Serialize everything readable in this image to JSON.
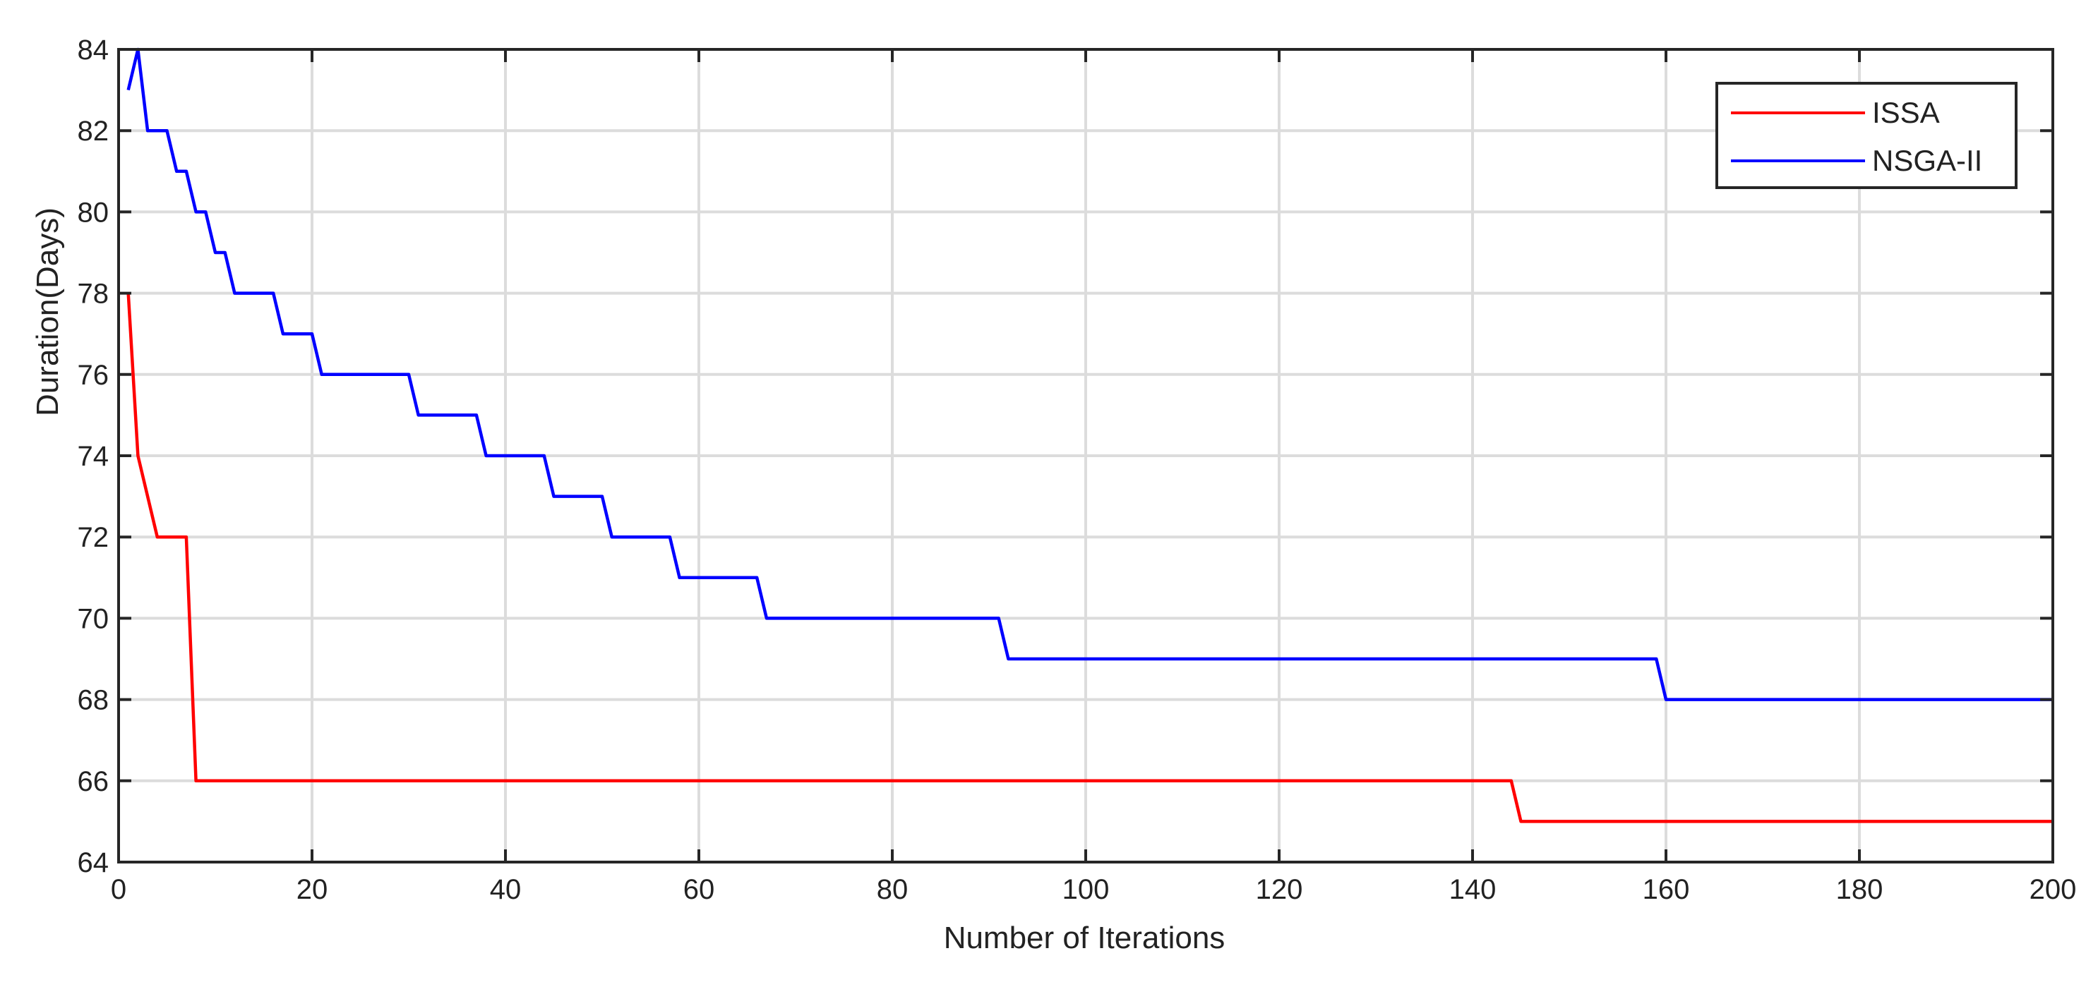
{
  "chart_data": {
    "type": "line",
    "title": "",
    "xlabel": "Number of Iterations",
    "ylabel": "Duration(Days)",
    "xlim": [
      0,
      200
    ],
    "ylim": [
      64,
      84
    ],
    "xticks": [
      0,
      20,
      40,
      60,
      80,
      100,
      120,
      140,
      160,
      180,
      200
    ],
    "yticks": [
      64,
      66,
      68,
      70,
      72,
      74,
      76,
      78,
      80,
      82,
      84
    ],
    "grid": true,
    "legend_position": "top-right",
    "series": [
      {
        "name": "ISSA",
        "color": "#ff0000",
        "points": [
          [
            1,
            78
          ],
          [
            2,
            74
          ],
          [
            4,
            72
          ],
          [
            7,
            72
          ],
          [
            8,
            66
          ],
          [
            144,
            66
          ],
          [
            145,
            65
          ],
          [
            200,
            65
          ]
        ]
      },
      {
        "name": "NSGA-II",
        "color": "#0000ff",
        "points": [
          [
            1,
            83
          ],
          [
            2,
            84
          ],
          [
            3,
            82
          ],
          [
            5,
            82
          ],
          [
            6,
            81
          ],
          [
            7,
            81
          ],
          [
            8,
            80
          ],
          [
            9,
            80
          ],
          [
            10,
            79
          ],
          [
            11,
            79
          ],
          [
            12,
            78
          ],
          [
            16,
            78
          ],
          [
            17,
            77
          ],
          [
            20,
            77
          ],
          [
            21,
            76
          ],
          [
            30,
            76
          ],
          [
            31,
            75
          ],
          [
            37,
            75
          ],
          [
            38,
            74
          ],
          [
            44,
            74
          ],
          [
            45,
            73
          ],
          [
            50,
            73
          ],
          [
            51,
            72
          ],
          [
            57,
            72
          ],
          [
            58,
            71
          ],
          [
            66,
            71
          ],
          [
            67,
            70
          ],
          [
            91,
            70
          ],
          [
            92,
            69
          ],
          [
            159,
            69
          ],
          [
            160,
            68
          ],
          [
            200,
            68
          ]
        ]
      }
    ]
  }
}
